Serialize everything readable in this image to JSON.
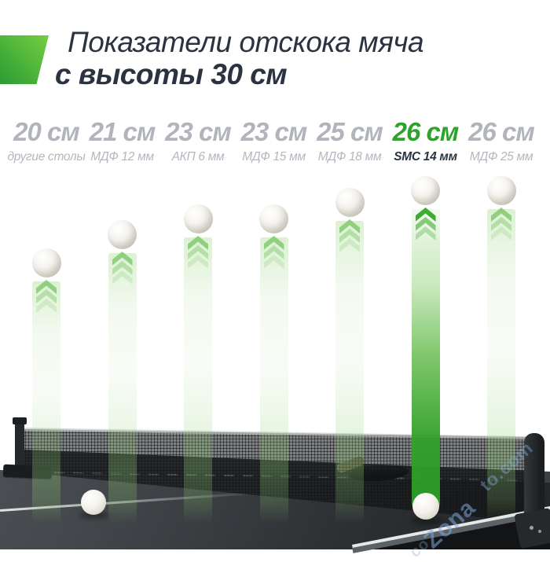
{
  "header": {
    "title_line1": "Показатели отскока мяча",
    "title_line2": "с высоты 30 см"
  },
  "colors": {
    "accent_green": "#2da32c",
    "icon_gradient_start": "#70cc40",
    "icon_gradient_end": "#2f9e34",
    "title_text": "#2b3340",
    "muted_text": "#b1b4bb"
  },
  "chart_data": {
    "type": "bar",
    "title": "Показатели отскока мяча с высоты 30 см",
    "drop_height_cm": 30,
    "unit": "см",
    "categories": [
      "другие столы",
      "МДФ 12 мм",
      "АКП 6 мм",
      "МДФ 15 мм",
      "МДФ 18 мм",
      "SMC 14 мм",
      "МДФ 25 мм"
    ],
    "values": [
      20,
      21,
      23,
      23,
      25,
      26,
      26
    ],
    "value_labels": [
      "20 см",
      "21 см",
      "23 см",
      "23 см",
      "25 см",
      "26 см",
      "26 см"
    ],
    "highlight_index": 5,
    "legend_position": "none",
    "grid": false
  },
  "watermark": {
    "fragments": [
      "Zona",
      "to.com",
      "co"
    ]
  }
}
